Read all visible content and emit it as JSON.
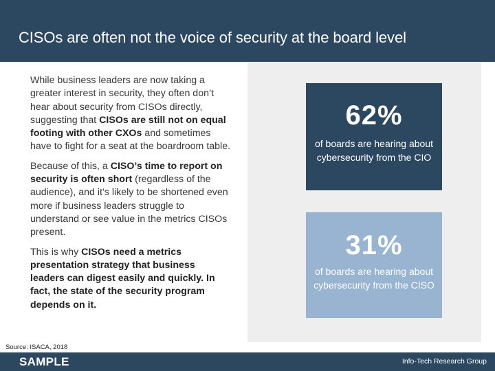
{
  "title": "CISOs are often not the voice of security at the board level",
  "paragraphs": {
    "p1": {
      "lead": "While business leaders are now taking a greater interest in security, they often don’t hear about security from CISOs directly, suggesting that ",
      "bold": "CISOs are still not on equal footing with other CXOs",
      "tail": " and sometimes have to fight for a seat at the boardroom table."
    },
    "p2": {
      "lead": "Because of this, a ",
      "bold": "CISO’s time to report on security is often short",
      "tail": " (regardless of the audience), and it’s likely to be shortened even more if business leaders struggle to understand or see value in the metrics CISOs present."
    },
    "p3": {
      "lead": "This is why ",
      "bold": "CISOs need a metrics presentation strategy that business leaders can digest easily and quickly. In fact, the state of the security program depends on it."
    }
  },
  "stats": {
    "cio": {
      "value": "62%",
      "description": "of boards are hearing about cybersecurity from the CIO"
    },
    "ciso": {
      "value": "31%",
      "description": "of boards are hearing about cybersecurity from the CISO"
    }
  },
  "source": "Source: ISACA, 2018",
  "footer": {
    "sample": "SAMPLE",
    "brand": "Info-Tech Research Group"
  },
  "colors": {
    "navy": "#2c4760",
    "light_blue": "#98b4d1",
    "panel_gray": "#eeeeee"
  }
}
